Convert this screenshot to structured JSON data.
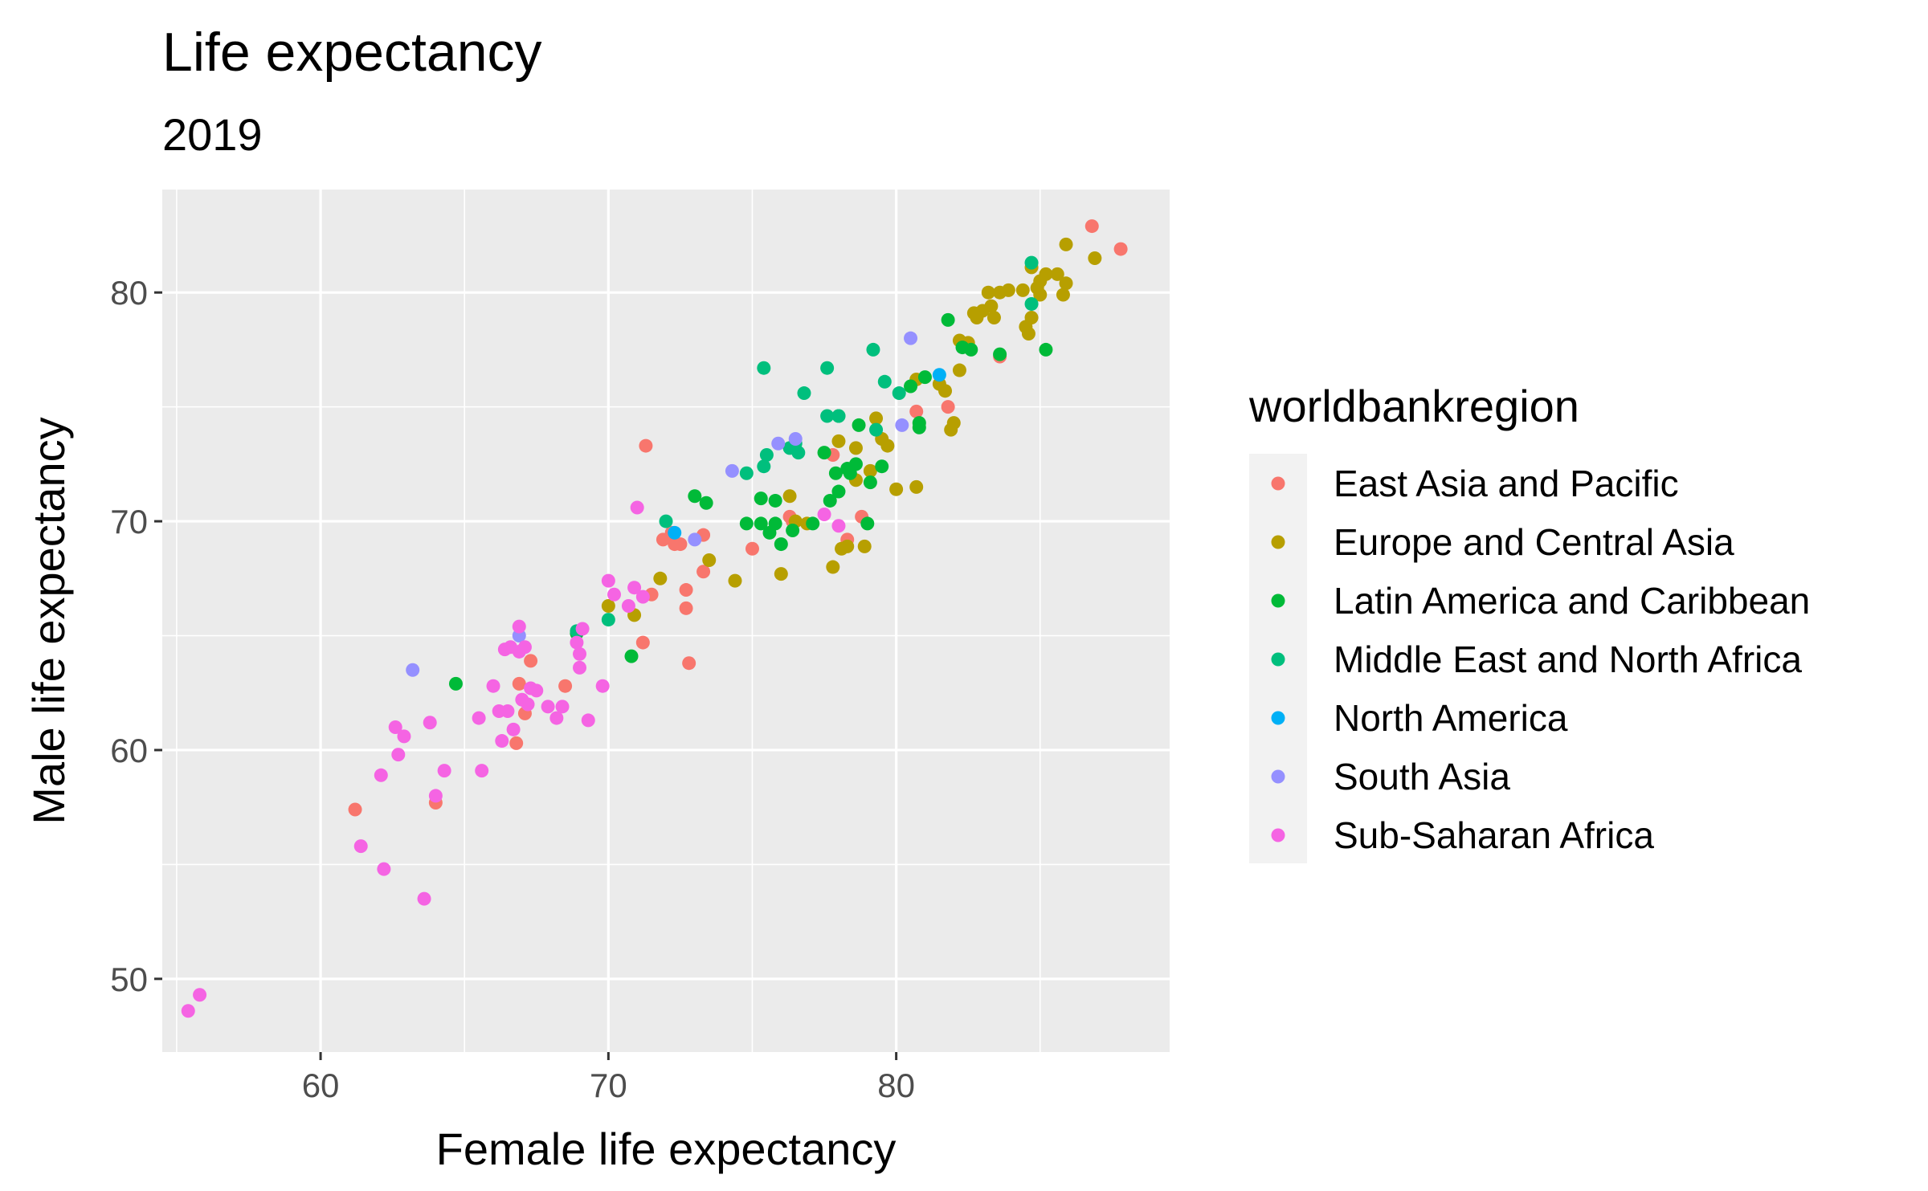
{
  "chart_data": {
    "type": "scatter",
    "title": "Life expectancy",
    "subtitle": "2019",
    "xlabel": "Female life expectancy",
    "ylabel": "Male life expectancy",
    "xlim": [
      54.5,
      89.5
    ],
    "ylim": [
      46.8,
      84.5
    ],
    "xticks": [
      60,
      70,
      80
    ],
    "yticks": [
      50,
      60,
      70,
      80
    ],
    "grid": true,
    "legend": {
      "title": "worldbankregion",
      "placement": "right"
    },
    "series": [
      {
        "name": "East Asia and Pacific",
        "color": "#F8766D",
        "points": [
          [
            86.8,
            82.9
          ],
          [
            87.8,
            81.9
          ],
          [
            83.6,
            77.2
          ],
          [
            81.8,
            75.0
          ],
          [
            80.7,
            74.8
          ],
          [
            78.8,
            70.2
          ],
          [
            78.3,
            69.2
          ],
          [
            77.8,
            72.9
          ],
          [
            76.3,
            70.2
          ],
          [
            76.4,
            70.0
          ],
          [
            75.0,
            68.8
          ],
          [
            73.3,
            69.4
          ],
          [
            73.3,
            67.8
          ],
          [
            72.7,
            67.0
          ],
          [
            72.7,
            66.2
          ],
          [
            72.5,
            69.0
          ],
          [
            72.3,
            69.0
          ],
          [
            72.2,
            69.5
          ],
          [
            71.9,
            69.2
          ],
          [
            71.3,
            73.3
          ],
          [
            71.5,
            66.8
          ],
          [
            71.2,
            64.7
          ],
          [
            72.8,
            63.8
          ],
          [
            68.5,
            62.8
          ],
          [
            67.3,
            63.9
          ],
          [
            66.9,
            62.9
          ],
          [
            66.8,
            60.3
          ],
          [
            67.1,
            61.6
          ],
          [
            64.0,
            57.7
          ],
          [
            61.2,
            57.4
          ]
        ]
      },
      {
        "name": "Europe and Central Asia",
        "color": "#B79F00",
        "points": [
          [
            85.9,
            82.1
          ],
          [
            86.9,
            81.5
          ],
          [
            85.9,
            80.4
          ],
          [
            85.6,
            80.8
          ],
          [
            85.2,
            80.8
          ],
          [
            85.0,
            80.5
          ],
          [
            84.9,
            80.2
          ],
          [
            84.7,
            81.1
          ],
          [
            84.4,
            80.1
          ],
          [
            83.9,
            80.1
          ],
          [
            83.6,
            80.0
          ],
          [
            83.2,
            80.0
          ],
          [
            85.0,
            79.9
          ],
          [
            85.8,
            79.9
          ],
          [
            83.3,
            79.4
          ],
          [
            83.0,
            79.2
          ],
          [
            82.7,
            79.1
          ],
          [
            82.8,
            78.9
          ],
          [
            84.7,
            78.9
          ],
          [
            84.5,
            78.5
          ],
          [
            84.6,
            78.2
          ],
          [
            83.4,
            78.9
          ],
          [
            82.5,
            77.8
          ],
          [
            82.2,
            77.9
          ],
          [
            81.5,
            76.0
          ],
          [
            81.7,
            75.7
          ],
          [
            82.2,
            76.6
          ],
          [
            80.7,
            76.2
          ],
          [
            81.9,
            74.0
          ],
          [
            82.0,
            74.3
          ],
          [
            79.3,
            74.5
          ],
          [
            79.5,
            73.6
          ],
          [
            79.7,
            73.3
          ],
          [
            78.6,
            73.2
          ],
          [
            78.0,
            73.5
          ],
          [
            80.0,
            71.4
          ],
          [
            80.7,
            71.5
          ],
          [
            79.1,
            72.2
          ],
          [
            78.6,
            71.8
          ],
          [
            77.8,
            68.0
          ],
          [
            78.1,
            68.8
          ],
          [
            78.3,
            68.9
          ],
          [
            78.9,
            68.9
          ],
          [
            76.3,
            71.1
          ],
          [
            76.5,
            70.0
          ],
          [
            76.0,
            67.7
          ],
          [
            76.9,
            69.9
          ],
          [
            74.4,
            67.4
          ],
          [
            73.5,
            68.3
          ],
          [
            71.8,
            67.5
          ],
          [
            70.9,
            65.9
          ],
          [
            70.0,
            66.3
          ]
        ]
      },
      {
        "name": "Latin America and Caribbean",
        "color": "#00BA38",
        "points": [
          [
            85.2,
            77.5
          ],
          [
            83.6,
            77.3
          ],
          [
            82.6,
            77.5
          ],
          [
            82.3,
            77.6
          ],
          [
            81.8,
            78.8
          ],
          [
            81.0,
            76.3
          ],
          [
            80.5,
            75.9
          ],
          [
            80.8,
            74.3
          ],
          [
            80.8,
            74.1
          ],
          [
            78.7,
            74.2
          ],
          [
            78.0,
            74.6
          ],
          [
            77.9,
            72.1
          ],
          [
            77.5,
            73.0
          ],
          [
            78.3,
            72.3
          ],
          [
            78.6,
            72.5
          ],
          [
            79.5,
            72.4
          ],
          [
            79.1,
            71.7
          ],
          [
            78.4,
            72.1
          ],
          [
            78.0,
            71.3
          ],
          [
            79.0,
            69.9
          ],
          [
            77.7,
            70.9
          ],
          [
            77.1,
            69.9
          ],
          [
            76.4,
            69.6
          ],
          [
            75.8,
            70.9
          ],
          [
            75.3,
            71.0
          ],
          [
            75.3,
            69.9
          ],
          [
            75.8,
            69.9
          ],
          [
            75.6,
            69.5
          ],
          [
            76.0,
            69.0
          ],
          [
            74.8,
            69.9
          ],
          [
            73.0,
            71.1
          ],
          [
            73.4,
            70.8
          ],
          [
            64.7,
            62.9
          ],
          [
            70.8,
            64.1
          ],
          [
            68.9,
            65.1
          ]
        ]
      },
      {
        "name": "Middle East and North Africa",
        "color": "#00BF7D",
        "points": [
          [
            84.7,
            81.3
          ],
          [
            84.7,
            79.5
          ],
          [
            79.6,
            76.1
          ],
          [
            80.1,
            75.6
          ],
          [
            79.2,
            77.5
          ],
          [
            77.6,
            76.7
          ],
          [
            75.4,
            76.7
          ],
          [
            76.8,
            75.6
          ],
          [
            77.6,
            74.6
          ],
          [
            78.0,
            74.6
          ],
          [
            79.3,
            74.0
          ],
          [
            76.3,
            73.2
          ],
          [
            76.5,
            73.4
          ],
          [
            76.6,
            73.0
          ],
          [
            75.5,
            72.9
          ],
          [
            75.4,
            72.4
          ],
          [
            74.8,
            72.1
          ],
          [
            72.0,
            70.0
          ],
          [
            70.0,
            65.7
          ],
          [
            68.9,
            65.2
          ]
        ]
      },
      {
        "name": "North America",
        "color": "#00B0F6",
        "points": [
          [
            81.5,
            76.4
          ],
          [
            72.3,
            69.5
          ]
        ]
      },
      {
        "name": "South Asia",
        "color": "#9590FF",
        "points": [
          [
            80.5,
            78.0
          ],
          [
            80.2,
            74.2
          ],
          [
            76.5,
            73.6
          ],
          [
            75.9,
            73.4
          ],
          [
            74.3,
            72.2
          ],
          [
            73.0,
            69.2
          ],
          [
            63.2,
            63.5
          ],
          [
            66.9,
            65.0
          ]
        ]
      },
      {
        "name": "Sub-Saharan Africa",
        "color": "#F564E3",
        "points": [
          [
            71.0,
            70.6
          ],
          [
            77.5,
            70.3
          ],
          [
            78.0,
            69.8
          ],
          [
            70.0,
            67.4
          ],
          [
            70.2,
            66.8
          ],
          [
            70.7,
            66.3
          ],
          [
            70.9,
            67.1
          ],
          [
            71.2,
            66.7
          ],
          [
            69.1,
            65.3
          ],
          [
            69.0,
            64.2
          ],
          [
            68.9,
            64.7
          ],
          [
            69.0,
            63.6
          ],
          [
            69.8,
            62.8
          ],
          [
            69.3,
            61.3
          ],
          [
            68.2,
            61.4
          ],
          [
            68.4,
            61.9
          ],
          [
            67.9,
            61.9
          ],
          [
            67.5,
            62.6
          ],
          [
            67.3,
            62.7
          ],
          [
            66.9,
            65.4
          ],
          [
            66.6,
            64.5
          ],
          [
            66.4,
            64.4
          ],
          [
            66.9,
            64.3
          ],
          [
            67.1,
            64.5
          ],
          [
            67.0,
            62.2
          ],
          [
            67.2,
            62.0
          ],
          [
            66.5,
            61.7
          ],
          [
            66.2,
            61.7
          ],
          [
            66.0,
            62.8
          ],
          [
            66.7,
            60.9
          ],
          [
            66.3,
            60.4
          ],
          [
            65.5,
            61.4
          ],
          [
            65.6,
            59.1
          ],
          [
            64.3,
            59.1
          ],
          [
            64.0,
            58.0
          ],
          [
            63.8,
            61.2
          ],
          [
            62.9,
            60.6
          ],
          [
            62.6,
            61.0
          ],
          [
            62.7,
            59.8
          ],
          [
            62.1,
            58.9
          ],
          [
            61.4,
            55.8
          ],
          [
            62.2,
            54.8
          ],
          [
            63.6,
            53.5
          ],
          [
            55.4,
            48.6
          ],
          [
            55.8,
            49.3
          ]
        ]
      }
    ]
  }
}
